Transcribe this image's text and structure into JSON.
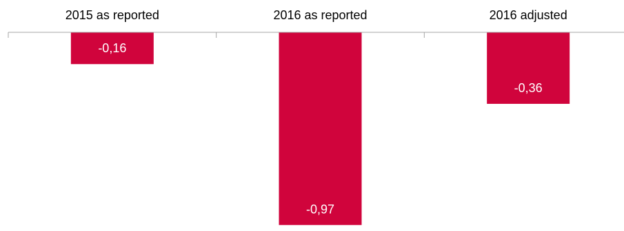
{
  "chart_data": {
    "type": "bar",
    "orientation": "vertical-negative",
    "categories": [
      "2015 as reported",
      "2016 as reported",
      "2016 adjusted"
    ],
    "values": [
      -0.16,
      -0.97,
      -0.36
    ],
    "value_labels": [
      "-0,16",
      "-0,97",
      "-0,36"
    ],
    "category_position": "top",
    "ylim": [
      -1.0,
      0
    ],
    "grid": false,
    "legend": "none",
    "bar_color": "#D0043C",
    "axis_color": "#A6A6A6"
  }
}
